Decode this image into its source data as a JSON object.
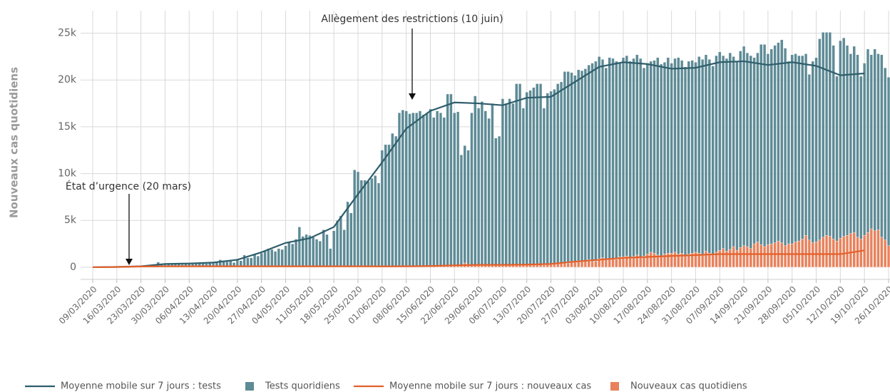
{
  "chart_data": {
    "type": "bar",
    "y_label": "Nouveaux cas quotidiens",
    "annotations": [
      "Allègement des restrictions (10 juin)",
      "État d’urgence (20 mars)"
    ],
    "ylim": [
      -1300,
      27400
    ],
    "yticks": [
      0,
      {
        "value": 5000,
        "label": "5k"
      },
      {
        "value": 10000,
        "label": "10k"
      },
      {
        "value": 15000,
        "label": "15k"
      },
      {
        "value": 20000,
        "label": "20k"
      },
      {
        "value": 25000,
        "label": "25k"
      }
    ],
    "grid": true,
    "categories": [
      "09/03/2020",
      null,
      null,
      null,
      null,
      null,
      null,
      "16/03/2020",
      null,
      null,
      null,
      null,
      null,
      null,
      "23/03/2020",
      null,
      null,
      null,
      null,
      null,
      null,
      "30/03/2020",
      null,
      null,
      null,
      null,
      null,
      null,
      "06/04/2020",
      null,
      null,
      null,
      null,
      null,
      null,
      "13/04/2020",
      null,
      null,
      null,
      null,
      null,
      null,
      "20/04/2020",
      null,
      null,
      null,
      null,
      null,
      null,
      "27/04/2020",
      null,
      null,
      null,
      null,
      null,
      null,
      "04/05/2020",
      null,
      null,
      null,
      null,
      null,
      null,
      "11/05/2020",
      null,
      null,
      null,
      null,
      null,
      null,
      "18/05/2020",
      null,
      null,
      null,
      null,
      null,
      null,
      "25/05/2020",
      null,
      null,
      null,
      null,
      null,
      null,
      "01/06/2020",
      null,
      null,
      null,
      null,
      null,
      null,
      "08/06/2020",
      null,
      null,
      null,
      null,
      null,
      null,
      "15/06/2020",
      null,
      null,
      null,
      null,
      null,
      null,
      "22/06/2020",
      null,
      null,
      null,
      null,
      null,
      null,
      "29/06/2020",
      null,
      null,
      null,
      null,
      null,
      null,
      "06/07/2020",
      null,
      null,
      null,
      null,
      null,
      null,
      "13/07/2020",
      null,
      null,
      null,
      null,
      null,
      null,
      "20/07/2020",
      null,
      null,
      null,
      null,
      null,
      null,
      "27/07/2020",
      null,
      null,
      null,
      null,
      null,
      null,
      "03/08/2020",
      null,
      null,
      null,
      null,
      null,
      null,
      "10/08/2020",
      null,
      null,
      null,
      null,
      null,
      null,
      "17/08/2020",
      null,
      null,
      null,
      null,
      null,
      null,
      "24/08/2020",
      null,
      null,
      null,
      null,
      null,
      null,
      "31/08/2020",
      null,
      null,
      null,
      null,
      null,
      null,
      "07/09/2020",
      null,
      null,
      null,
      null,
      null,
      null,
      "14/09/2020",
      null,
      null,
      null,
      null,
      null,
      null,
      "21/09/2020",
      null,
      null,
      null,
      null,
      null,
      null,
      "28/09/2020",
      null,
      null,
      null,
      null,
      null,
      null,
      "05/10/2020",
      null,
      null,
      null,
      null,
      null,
      null,
      "12/10/2020",
      null,
      null,
      null,
      null,
      null,
      null,
      "19/10/2020",
      null,
      null,
      null,
      null,
      null,
      null,
      "26/10/2020"
    ],
    "series": [
      {
        "name": "Moyenne mobile sur 7 jours : tests",
        "type": "line",
        "color": "#2e5d6b",
        "x": [
          "09/03/2020",
          "16/03/2020",
          "23/03/2020",
          "30/03/2020",
          "06/04/2020",
          "13/04/2020",
          "20/04/2020",
          "27/04/2020",
          "04/05/2020",
          "11/05/2020",
          "18/05/2020",
          "25/05/2020",
          "01/06/2020",
          "08/06/2020",
          "15/06/2020",
          "22/06/2020",
          "29/06/2020",
          "06/07/2020",
          "13/07/2020",
          "20/07/2020",
          "27/07/2020",
          "03/08/2020",
          "10/08/2020",
          "17/08/2020",
          "24/08/2020",
          "31/08/2020",
          "07/09/2020",
          "14/09/2020",
          "21/09/2020",
          "28/09/2020",
          "05/10/2020",
          "12/10/2020",
          "19/10/2020"
        ],
        "values": [
          0,
          30,
          100,
          350,
          400,
          500,
          800,
          1600,
          2600,
          3100,
          4300,
          7800,
          11200,
          14800,
          16700,
          17600,
          17500,
          17300,
          18100,
          18200,
          19800,
          21400,
          21900,
          21700,
          21200,
          21300,
          21900,
          22000,
          21600,
          21900,
          21500,
          20500,
          20700
        ]
      },
      {
        "name": "Tests quoridiens",
        "type": "bar",
        "color": "#5e8b96",
        "values": [
          0,
          0,
          0,
          0,
          0,
          0,
          0,
          20,
          30,
          40,
          50,
          60,
          50,
          60,
          100,
          150,
          200,
          250,
          300,
          550,
          300,
          350,
          400,
          400,
          350,
          400,
          300,
          400,
          400,
          450,
          400,
          450,
          500,
          400,
          500,
          500,
          600,
          800,
          700,
          600,
          700,
          500,
          900,
          700,
          1300,
          1000,
          1000,
          1400,
          1200,
          1500,
          1800,
          2000,
          1900,
          1700,
          2000,
          1900,
          2300,
          2700,
          2500,
          3000,
          4300,
          3300,
          3500,
          3400,
          3200,
          3000,
          2800,
          4000,
          3500,
          2000,
          3900,
          5000,
          5500,
          4000,
          7000,
          5800,
          10400,
          10200,
          9300,
          9300,
          9200,
          9500,
          9800,
          9000,
          12500,
          13100,
          13100,
          14300,
          14000,
          16500,
          16800,
          16700,
          16400,
          16500,
          16500,
          16700,
          16300,
          16500,
          16900,
          16000,
          16700,
          16500,
          16000,
          18500,
          18500,
          16500,
          16600,
          12000,
          13000,
          12500,
          16500,
          18300,
          17000,
          17700,
          16700,
          15900,
          17500,
          13800,
          14000,
          18000,
          17500,
          18000,
          17500,
          19600,
          19600,
          17000,
          18700,
          18900,
          19200,
          19600,
          19600,
          17000,
          18600,
          18800,
          19000,
          19600,
          19800,
          20900,
          20900,
          20800,
          20500,
          21100,
          21000,
          21200,
          21600,
          21800,
          22000,
          22500,
          22200,
          21300,
          22400,
          22300,
          22000,
          21900,
          22400,
          22600,
          22000,
          22300,
          22700,
          22300,
          21300,
          21800,
          22000,
          22100,
          22400,
          21700,
          21900,
          22400,
          21800,
          22300,
          22400,
          22100,
          21400,
          22000,
          22100,
          21900,
          22500,
          22200,
          22700,
          22200,
          21500,
          22600,
          23000,
          22600,
          22300,
          22900,
          22500,
          22000,
          23100,
          23600,
          22900,
          22600,
          22400,
          22900,
          23800,
          23800,
          22800,
          23300,
          23700,
          24000,
          24300,
          23400,
          22000,
          22700,
          22800,
          22600,
          22600,
          22800,
          20600,
          22000,
          22400,
          24400,
          25100,
          25100,
          25100,
          23700,
          20400,
          24200,
          24500,
          23700,
          22800,
          23600,
          22700,
          20400,
          21800,
          23300,
          22700,
          23300,
          22800,
          22700,
          21300,
          20300
        ]
      },
      {
        "name": "Moyenne mobile sur 7 jours : nouveaux cas",
        "type": "line",
        "color": "#e3602a",
        "x": [
          "09/03/2020",
          "16/03/2020",
          "23/03/2020",
          "30/03/2020",
          "06/04/2020",
          "13/04/2020",
          "20/04/2020",
          "27/04/2020",
          "04/05/2020",
          "11/05/2020",
          "18/05/2020",
          "25/05/2020",
          "01/06/2020",
          "08/06/2020",
          "15/06/2020",
          "22/06/2020",
          "29/06/2020",
          "06/07/2020",
          "13/07/2020",
          "20/07/2020",
          "27/07/2020",
          "03/08/2020",
          "10/08/2020",
          "17/08/2020",
          "24/08/2020",
          "31/08/2020",
          "07/09/2020",
          "14/09/2020",
          "21/09/2020",
          "28/09/2020",
          "05/10/2020",
          "12/10/2020",
          "19/10/2020"
        ],
        "values": [
          0,
          20,
          80,
          100,
          100,
          100,
          100,
          100,
          100,
          100,
          100,
          100,
          90,
          100,
          130,
          200,
          250,
          250,
          280,
          350,
          600,
          800,
          1000,
          1100,
          1200,
          1300,
          1400,
          1400,
          1400,
          1400,
          1400,
          1400,
          1800
        ]
      },
      {
        "name": "Nouveaux cas quotidiens",
        "type": "bar",
        "color": "#e8825c",
        "values": [
          0,
          0,
          0,
          0,
          0,
          0,
          0,
          10,
          10,
          20,
          20,
          30,
          30,
          40,
          60,
          80,
          100,
          90,
          110,
          100,
          90,
          100,
          110,
          90,
          120,
          100,
          80,
          90,
          100,
          90,
          110,
          100,
          90,
          80,
          100,
          110,
          100,
          120,
          90,
          100,
          80,
          90,
          100,
          110,
          90,
          100,
          100,
          80,
          90,
          90,
          100,
          110,
          100,
          90,
          80,
          90,
          100,
          110,
          100,
          90,
          100,
          80,
          90,
          100,
          120,
          110,
          100,
          90,
          80,
          100,
          110,
          100,
          100,
          90,
          100,
          80,
          90,
          90,
          100,
          100,
          90,
          80,
          70,
          90,
          80,
          100,
          90,
          100,
          90,
          80,
          90,
          100,
          110,
          100,
          120,
          110,
          90,
          100,
          120,
          130,
          150,
          140,
          130,
          120,
          150,
          200,
          180,
          250,
          450,
          300,
          200,
          250,
          250,
          300,
          280,
          260,
          300,
          200,
          250,
          200,
          250,
          260,
          280,
          250,
          200,
          230,
          250,
          300,
          280,
          300,
          320,
          250,
          280,
          300,
          350,
          400,
          420,
          450,
          400,
          500,
          600,
          700,
          650,
          700,
          800,
          600,
          650,
          900,
          1000,
          800,
          900,
          950,
          850,
          1100,
          1100,
          1200,
          1000,
          1150,
          1300,
          1000,
          1200,
          1400,
          1600,
          1500,
          1300,
          1200,
          1400,
          1500,
          1500,
          1600,
          1400,
          1500,
          1300,
          1400,
          1500,
          1600,
          1500,
          1400,
          1700,
          1500,
          1400,
          1600,
          1800,
          2000,
          1700,
          1900,
          2200,
          1800,
          2100,
          2300,
          2200,
          2000,
          2500,
          2700,
          2400,
          2200,
          2400,
          2500,
          2600,
          2800,
          2600,
          2300,
          2500,
          2500,
          2700,
          2800,
          3000,
          3400,
          2900,
          2600,
          2700,
          2900,
          3200,
          3400,
          3300,
          3000,
          2800,
          3100,
          3300,
          3400,
          3600,
          3700,
          3200,
          3000,
          3400,
          3700,
          4100,
          3900,
          4000,
          3200,
          2900,
          2300
        ]
      }
    ]
  }
}
